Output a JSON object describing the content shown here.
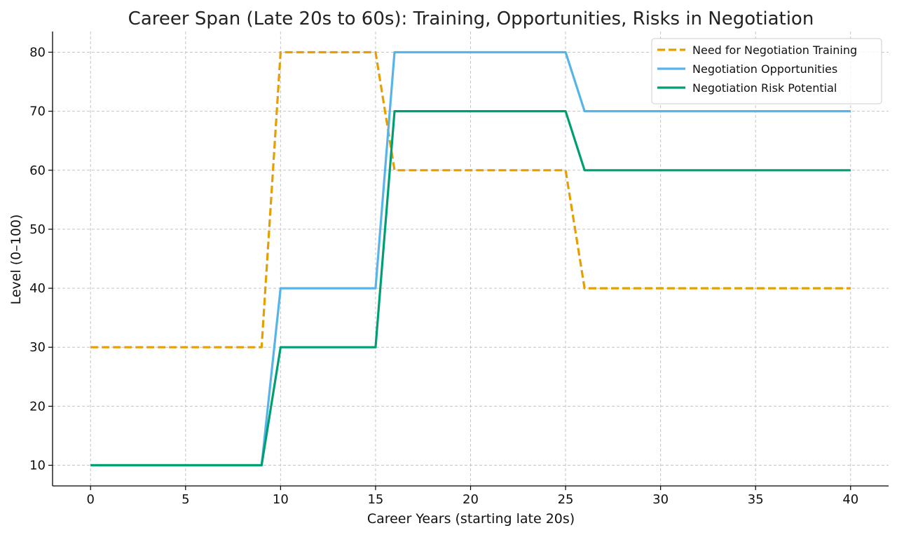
{
  "chart_data": {
    "type": "line",
    "title": "Career Span (Late 20s to 60s): Training, Opportunities, Risks in Negotiation",
    "xlabel": "Career Years (starting late 20s)",
    "ylabel": "Level (0–100)",
    "xlim": [
      -2,
      42
    ],
    "ylim": [
      6.5,
      83.5
    ],
    "xticks": [
      0,
      5,
      10,
      15,
      20,
      25,
      30,
      35,
      40
    ],
    "yticks": [
      10,
      20,
      30,
      40,
      50,
      60,
      70,
      80
    ],
    "grid": true,
    "legend_position": "top-right",
    "series": [
      {
        "name": "Need for Negotiation Training",
        "color": "#E69F00",
        "dash": "dashed",
        "x": [
          0,
          9,
          10,
          15,
          16,
          25,
          26,
          40
        ],
        "values": [
          30,
          30,
          80,
          80,
          60,
          60,
          40,
          40
        ]
      },
      {
        "name": "Negotiation Opportunities",
        "color": "#56B4E9",
        "dash": "solid",
        "x": [
          0,
          9,
          10,
          15,
          16,
          25,
          26,
          40
        ],
        "values": [
          10,
          10,
          40,
          40,
          80,
          80,
          70,
          70
        ]
      },
      {
        "name": "Negotiation Risk Potential",
        "color": "#009E73",
        "dash": "solid",
        "x": [
          0,
          9,
          10,
          15,
          16,
          25,
          26,
          40
        ],
        "values": [
          10,
          10,
          30,
          30,
          70,
          70,
          60,
          60
        ]
      }
    ]
  }
}
